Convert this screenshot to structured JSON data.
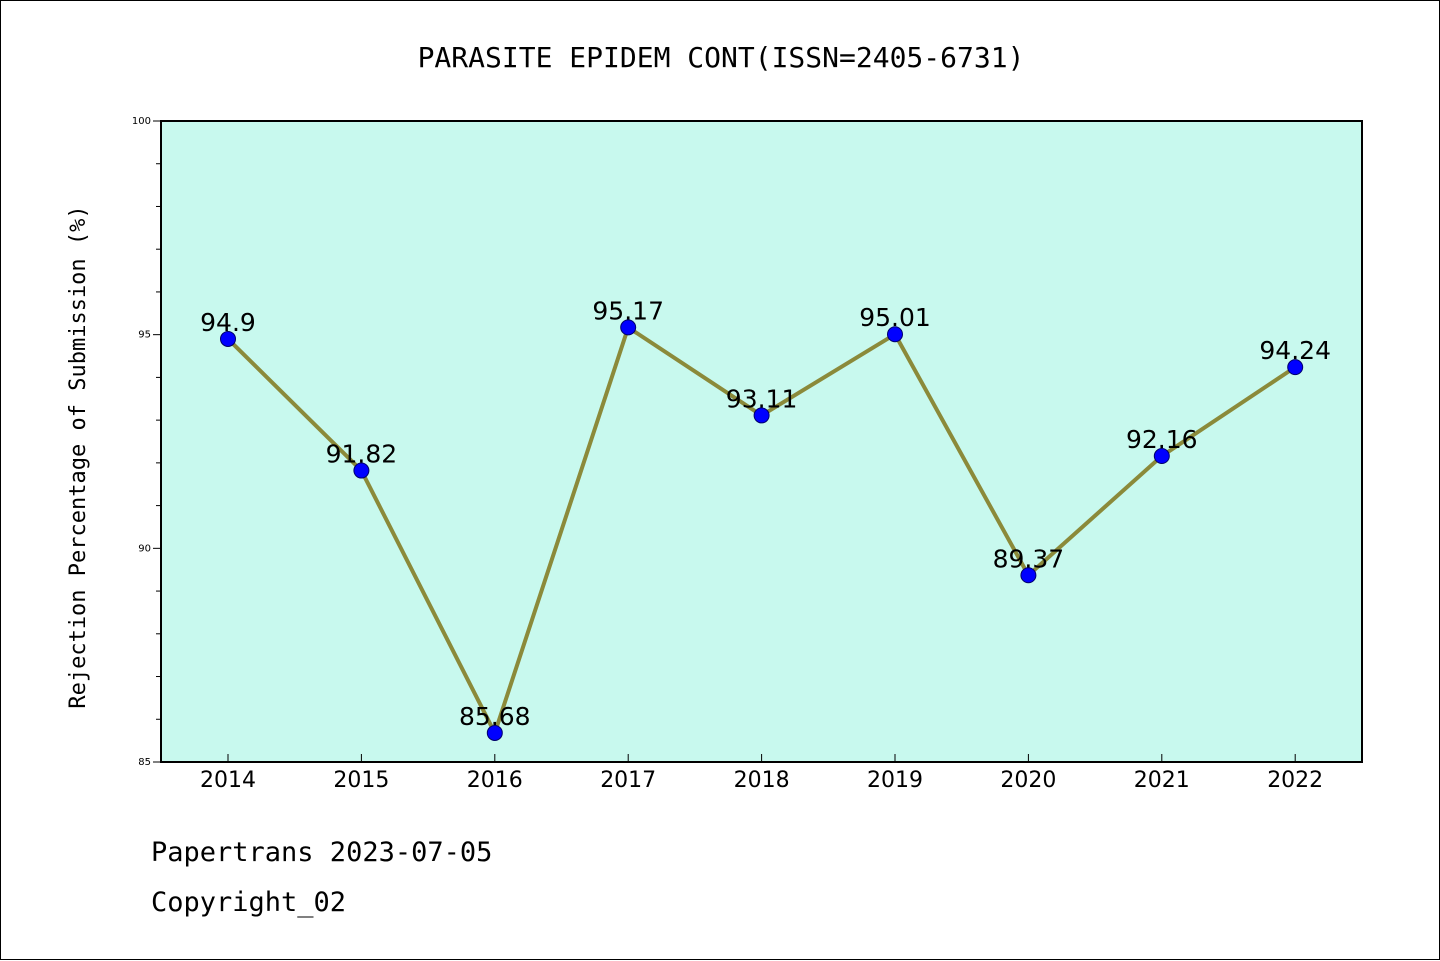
{
  "chart_data": {
    "type": "line",
    "title": "PARASITE EPIDEM CONT(ISSN=2405-6731)",
    "xlabel": "",
    "ylabel": "Rejection Percentage of Submission (%)",
    "categories": [
      "2014",
      "2015",
      "2016",
      "2017",
      "2018",
      "2019",
      "2020",
      "2021",
      "2022"
    ],
    "values": [
      94.9,
      91.82,
      85.68,
      95.17,
      93.11,
      95.01,
      89.37,
      92.16,
      94.24
    ],
    "data_labels": [
      "94.9",
      "91.82",
      "85.68",
      "95.17",
      "93.11",
      "95.01",
      "89.37",
      "92.16",
      "94.24"
    ],
    "ylim": [
      85,
      100
    ],
    "yticks": [
      "85",
      "90",
      "95",
      "100"
    ],
    "grid": false,
    "colors": {
      "plot_background": "#c8f9ee",
      "line": "#8b8a3a",
      "marker": "#0000ff"
    }
  },
  "footer": {
    "line1": "Papertrans 2023-07-05",
    "line2": "Copyright_02"
  }
}
